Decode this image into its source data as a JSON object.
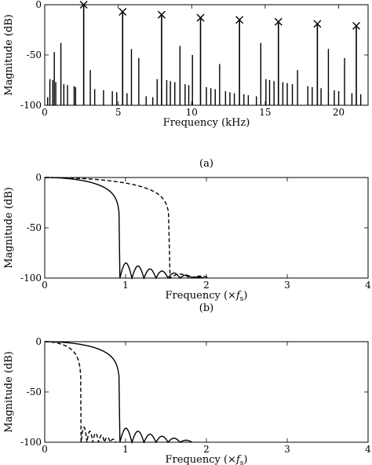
{
  "chart_data": [
    {
      "type": "stem",
      "panel_label": "(a)",
      "xlabel": "Frequency (kHz)",
      "ylabel": "Magnitude (dB)",
      "xlim": [
        0,
        22
      ],
      "ylim": [
        -100,
        0
      ],
      "xticks": [
        0,
        5,
        10,
        15,
        20
      ],
      "yticks": [
        0,
        -50,
        -100
      ],
      "grid": false,
      "harmonics": {
        "marker": "x",
        "x": [
          2.65,
          5.3,
          7.95,
          10.6,
          13.25,
          15.9,
          18.55,
          21.2
        ],
        "y": [
          0,
          -7,
          -10,
          -13,
          -15,
          -17,
          -19,
          -21
        ]
      },
      "aliases": {
        "x": [
          0.2,
          0.35,
          0.55,
          0.65,
          0.75,
          1.1,
          1.3,
          1.55,
          2.0,
          2.1,
          3.1,
          3.4,
          4.0,
          4.6,
          4.9,
          5.6,
          5.9,
          6.4,
          6.9,
          7.35,
          7.65,
          8.3,
          8.55,
          8.85,
          9.2,
          9.55,
          9.8,
          10.05,
          11.0,
          11.3,
          11.6,
          11.9,
          12.3,
          12.6,
          12.9,
          13.55,
          13.85,
          14.4,
          14.7,
          15.05,
          15.3,
          15.6,
          16.2,
          16.5,
          16.85,
          17.2,
          17.9,
          18.2,
          18.8,
          19.3,
          19.7,
          20.0,
          20.4,
          20.9,
          21.5
        ]
      }
    },
    {
      "type": "line",
      "panel_label": "(b)",
      "xlabel": "Frequency (×",
      "xlabel_var": "f",
      "xlabel_sub": "s",
      "xlabel_end": ")",
      "ylabel": "Magnitude (dB)",
      "xlim": [
        0,
        4
      ],
      "ylim": [
        -100,
        0
      ],
      "xticks": [
        0,
        1,
        2,
        3,
        4
      ],
      "yticks": [
        0,
        -50,
        -100
      ],
      "grid": false,
      "series": [
        {
          "style": "solid",
          "main_lobe_zero": 0.93,
          "sidelobe_peaks": [
            -85,
            -88,
            -91,
            -93,
            -95,
            -97,
            -99
          ]
        },
        {
          "style": "dashed",
          "main_lobe_zero": 1.55,
          "sidelobe_peaks": [
            -96,
            -98
          ]
        }
      ]
    },
    {
      "type": "line",
      "panel_label": "",
      "xlabel": "Frequency (×",
      "xlabel_var": "f",
      "xlabel_sub": "s",
      "xlabel_end": ")",
      "ylabel": "Magnitude (dB)",
      "xlim": [
        0,
        4
      ],
      "ylim": [
        -100,
        0
      ],
      "xticks": [
        0,
        1,
        2,
        3,
        4
      ],
      "yticks": [
        0,
        -50,
        -100
      ],
      "grid": false,
      "series": [
        {
          "style": "solid",
          "main_lobe_zero": 0.93,
          "sidelobe_peaks": [
            -86,
            -89,
            -92,
            -94,
            -96,
            -98
          ]
        },
        {
          "style": "dashed",
          "main_lobe_zero": 0.45,
          "sidelobe_peaks": [
            -85,
            -89,
            -91,
            -93,
            -95,
            -97
          ]
        }
      ]
    }
  ]
}
